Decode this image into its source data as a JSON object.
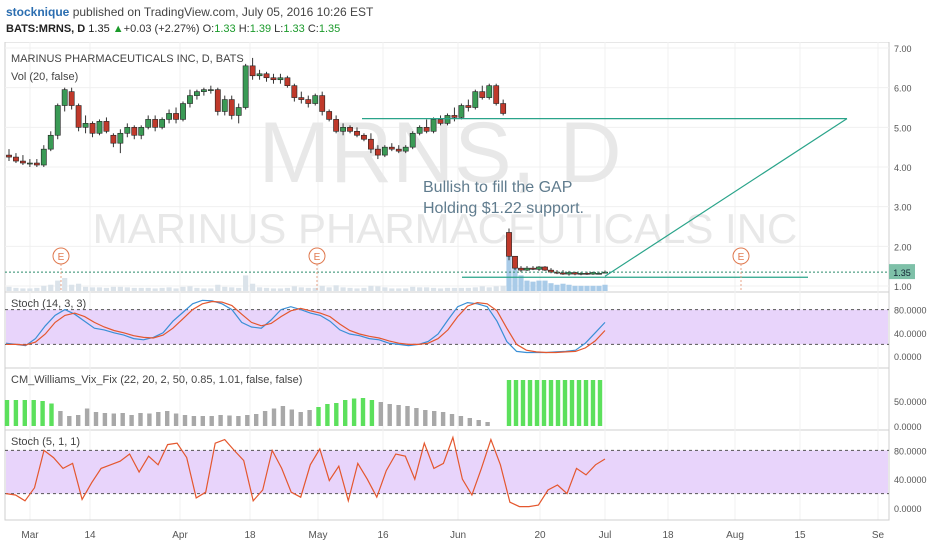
{
  "header": {
    "user": "stocknique",
    "published_text": "published on TradingView.com, July 05, 2016 10:26 EST",
    "symbol": "BATS:MRNS, D",
    "last": "1.35",
    "change": "+0.03 (+2.27%)",
    "o_label": "O:",
    "o_value": "1.33",
    "h_label": "H:",
    "h_value": "1.39",
    "l_label": "L:",
    "l_value": "1.33",
    "c_label": "C:",
    "c_value": "1.35"
  },
  "colors": {
    "up": "#3a9a55",
    "down": "#c0392b",
    "stoch_k": "#3a8fd6",
    "stoch_d": "#e4572e",
    "band": "#e8d4fb",
    "vix_green": "#5ce05c",
    "vix_gray": "#a8a8a8",
    "trend": "#2aa48a",
    "price_tag": "#7ec0a8"
  },
  "annotations": {
    "watermark_ticker": "MRNS, D",
    "watermark_name": "MARINUS PHARMACEUTICALS INC",
    "note_line1": "Bullish to fill the GAP",
    "note_line2": "Holding $1.22 support.",
    "earnings_marker": "E",
    "last_price_tag": "1.35"
  },
  "chart_data": [
    {
      "type": "candlestick",
      "title": "MARINUS PHARMACEUTICALS INC, D, BATS",
      "volume_label": "Vol (20, false)",
      "y_ticks": [
        "7.00",
        "6.00",
        "5.00",
        "4.00",
        "3.00",
        "2.00",
        "1.00"
      ],
      "ylim": [
        1.0,
        7.0
      ],
      "candles": [
        {
          "o": 4.3,
          "h": 4.45,
          "l": 4.15,
          "c": 4.25
        },
        {
          "o": 4.25,
          "h": 4.35,
          "l": 4.1,
          "c": 4.15
        },
        {
          "o": 4.15,
          "h": 4.3,
          "l": 4.05,
          "c": 4.1
        },
        {
          "o": 4.1,
          "h": 4.2,
          "l": 4.0,
          "c": 4.1
        },
        {
          "o": 4.1,
          "h": 4.2,
          "l": 4.0,
          "c": 4.05
        },
        {
          "o": 4.05,
          "h": 4.55,
          "l": 4.0,
          "c": 4.45
        },
        {
          "o": 4.45,
          "h": 4.9,
          "l": 4.4,
          "c": 4.8
        },
        {
          "o": 4.8,
          "h": 5.6,
          "l": 4.7,
          "c": 5.55
        },
        {
          "o": 5.55,
          "h": 6.0,
          "l": 5.4,
          "c": 5.95
        },
        {
          "o": 5.9,
          "h": 6.0,
          "l": 5.45,
          "c": 5.55
        },
        {
          "o": 5.55,
          "h": 5.6,
          "l": 4.9,
          "c": 5.0
        },
        {
          "o": 5.0,
          "h": 5.3,
          "l": 4.85,
          "c": 5.1
        },
        {
          "o": 5.1,
          "h": 5.15,
          "l": 4.75,
          "c": 4.85
        },
        {
          "o": 4.85,
          "h": 5.2,
          "l": 4.8,
          "c": 5.15
        },
        {
          "o": 5.15,
          "h": 5.25,
          "l": 4.85,
          "c": 4.9
        },
        {
          "o": 4.8,
          "h": 4.85,
          "l": 4.5,
          "c": 4.6
        },
        {
          "o": 4.6,
          "h": 4.95,
          "l": 4.35,
          "c": 4.85
        },
        {
          "o": 4.85,
          "h": 5.1,
          "l": 4.75,
          "c": 5.0
        },
        {
          "o": 5.0,
          "h": 5.05,
          "l": 4.7,
          "c": 4.8
        },
        {
          "o": 4.8,
          "h": 5.05,
          "l": 4.7,
          "c": 5.0
        },
        {
          "o": 5.0,
          "h": 5.3,
          "l": 4.95,
          "c": 5.2
        },
        {
          "o": 5.2,
          "h": 5.3,
          "l": 4.9,
          "c": 5.0
        },
        {
          "o": 5.0,
          "h": 5.25,
          "l": 4.95,
          "c": 5.2
        },
        {
          "o": 5.2,
          "h": 5.45,
          "l": 5.1,
          "c": 5.35
        },
        {
          "o": 5.35,
          "h": 5.5,
          "l": 5.1,
          "c": 5.2
        },
        {
          "o": 5.2,
          "h": 5.65,
          "l": 5.15,
          "c": 5.6
        },
        {
          "o": 5.6,
          "h": 5.95,
          "l": 5.5,
          "c": 5.8
        },
        {
          "o": 5.8,
          "h": 5.95,
          "l": 5.7,
          "c": 5.9
        },
        {
          "o": 5.9,
          "h": 6.0,
          "l": 5.8,
          "c": 5.95
        },
        {
          "o": 5.95,
          "h": 6.05,
          "l": 5.85,
          "c": 5.95
        },
        {
          "o": 5.95,
          "h": 6.0,
          "l": 5.3,
          "c": 5.4
        },
        {
          "o": 5.4,
          "h": 5.8,
          "l": 5.3,
          "c": 5.7
        },
        {
          "o": 5.7,
          "h": 5.8,
          "l": 5.2,
          "c": 5.3
        },
        {
          "o": 5.3,
          "h": 5.6,
          "l": 5.1,
          "c": 5.5
        },
        {
          "o": 5.5,
          "h": 6.6,
          "l": 5.45,
          "c": 6.55
        },
        {
          "o": 6.55,
          "h": 6.75,
          "l": 6.2,
          "c": 6.3
        },
        {
          "o": 6.3,
          "h": 6.45,
          "l": 6.2,
          "c": 6.35
        },
        {
          "o": 6.35,
          "h": 6.4,
          "l": 6.15,
          "c": 6.25
        },
        {
          "o": 6.25,
          "h": 6.35,
          "l": 6.1,
          "c": 6.2
        },
        {
          "o": 6.2,
          "h": 6.35,
          "l": 6.1,
          "c": 6.25
        },
        {
          "o": 6.25,
          "h": 6.3,
          "l": 6.0,
          "c": 6.05
        },
        {
          "o": 6.05,
          "h": 6.1,
          "l": 5.65,
          "c": 5.75
        },
        {
          "o": 5.75,
          "h": 5.9,
          "l": 5.6,
          "c": 5.7
        },
        {
          "o": 5.7,
          "h": 5.8,
          "l": 5.5,
          "c": 5.6
        },
        {
          "o": 5.6,
          "h": 5.85,
          "l": 5.55,
          "c": 5.8
        },
        {
          "o": 5.8,
          "h": 5.9,
          "l": 5.3,
          "c": 5.4
        },
        {
          "o": 5.4,
          "h": 5.45,
          "l": 5.15,
          "c": 5.2
        },
        {
          "o": 5.2,
          "h": 5.3,
          "l": 4.85,
          "c": 4.9
        },
        {
          "o": 4.9,
          "h": 5.1,
          "l": 4.8,
          "c": 5.0
        },
        {
          "o": 5.0,
          "h": 5.05,
          "l": 4.85,
          "c": 4.9
        },
        {
          "o": 4.9,
          "h": 5.0,
          "l": 4.75,
          "c": 4.8
        },
        {
          "o": 4.8,
          "h": 4.85,
          "l": 4.65,
          "c": 4.7
        },
        {
          "o": 4.7,
          "h": 4.85,
          "l": 4.35,
          "c": 4.45
        },
        {
          "o": 4.45,
          "h": 4.55,
          "l": 4.2,
          "c": 4.3
        },
        {
          "o": 4.3,
          "h": 4.55,
          "l": 4.25,
          "c": 4.5
        },
        {
          "o": 4.5,
          "h": 4.6,
          "l": 4.4,
          "c": 4.45
        },
        {
          "o": 4.45,
          "h": 4.55,
          "l": 4.35,
          "c": 4.4
        },
        {
          "o": 4.4,
          "h": 4.55,
          "l": 4.35,
          "c": 4.5
        },
        {
          "o": 4.5,
          "h": 4.9,
          "l": 4.45,
          "c": 4.85
        },
        {
          "o": 4.85,
          "h": 5.05,
          "l": 4.8,
          "c": 5.0
        },
        {
          "o": 5.0,
          "h": 5.2,
          "l": 4.85,
          "c": 4.9
        },
        {
          "o": 4.9,
          "h": 5.25,
          "l": 4.85,
          "c": 5.2
        },
        {
          "o": 5.2,
          "h": 5.3,
          "l": 5.05,
          "c": 5.1
        },
        {
          "o": 5.1,
          "h": 5.35,
          "l": 5.05,
          "c": 5.3
        },
        {
          "o": 5.3,
          "h": 5.5,
          "l": 5.15,
          "c": 5.25
        },
        {
          "o": 5.25,
          "h": 5.6,
          "l": 5.2,
          "c": 5.55
        },
        {
          "o": 5.55,
          "h": 5.7,
          "l": 5.4,
          "c": 5.5
        },
        {
          "o": 5.5,
          "h": 5.95,
          "l": 5.45,
          "c": 5.9
        },
        {
          "o": 5.9,
          "h": 6.05,
          "l": 5.7,
          "c": 5.75
        },
        {
          "o": 5.75,
          "h": 6.1,
          "l": 5.7,
          "c": 6.05
        },
        {
          "o": 6.05,
          "h": 6.1,
          "l": 5.55,
          "c": 5.6
        },
        {
          "o": 5.6,
          "h": 5.7,
          "l": 5.3,
          "c": 5.35
        },
        {
          "o": 2.35,
          "h": 2.45,
          "l": 1.65,
          "c": 1.75
        },
        {
          "o": 1.75,
          "h": 1.75,
          "l": 1.4,
          "c": 1.45
        },
        {
          "o": 1.45,
          "h": 1.5,
          "l": 1.35,
          "c": 1.4
        },
        {
          "o": 1.4,
          "h": 1.5,
          "l": 1.38,
          "c": 1.45
        },
        {
          "o": 1.45,
          "h": 1.5,
          "l": 1.4,
          "c": 1.42
        },
        {
          "o": 1.42,
          "h": 1.5,
          "l": 1.38,
          "c": 1.48
        },
        {
          "o": 1.48,
          "h": 1.5,
          "l": 1.38,
          "c": 1.4
        },
        {
          "o": 1.4,
          "h": 1.45,
          "l": 1.32,
          "c": 1.35
        },
        {
          "o": 1.35,
          "h": 1.4,
          "l": 1.3,
          "c": 1.33
        },
        {
          "o": 1.33,
          "h": 1.4,
          "l": 1.28,
          "c": 1.3
        },
        {
          "o": 1.3,
          "h": 1.38,
          "l": 1.26,
          "c": 1.34
        },
        {
          "o": 1.34,
          "h": 1.36,
          "l": 1.27,
          "c": 1.3
        },
        {
          "o": 1.3,
          "h": 1.35,
          "l": 1.27,
          "c": 1.32
        },
        {
          "o": 1.32,
          "h": 1.36,
          "l": 1.28,
          "c": 1.3
        },
        {
          "o": 1.3,
          "h": 1.36,
          "l": 1.28,
          "c": 1.34
        },
        {
          "o": 1.32,
          "h": 1.36,
          "l": 1.29,
          "c": 1.32
        },
        {
          "o": 1.33,
          "h": 1.39,
          "l": 1.33,
          "c": 1.35
        }
      ],
      "volume_relative": [
        0.08,
        0.06,
        0.05,
        0.05,
        0.06,
        0.1,
        0.12,
        0.2,
        0.25,
        0.12,
        0.14,
        0.08,
        0.07,
        0.07,
        0.06,
        0.08,
        0.08,
        0.07,
        0.06,
        0.06,
        0.06,
        0.05,
        0.06,
        0.07,
        0.05,
        0.08,
        0.09,
        0.06,
        0.05,
        0.05,
        0.12,
        0.08,
        0.07,
        0.06,
        0.3,
        0.14,
        0.07,
        0.06,
        0.05,
        0.05,
        0.06,
        0.09,
        0.07,
        0.06,
        0.06,
        0.1,
        0.07,
        0.11,
        0.07,
        0.06,
        0.05,
        0.06,
        0.1,
        0.09,
        0.07,
        0.05,
        0.05,
        0.05,
        0.08,
        0.07,
        0.07,
        0.06,
        0.05,
        0.06,
        0.06,
        0.06,
        0.06,
        0.07,
        0.09,
        0.07,
        0.09,
        0.1,
        1.0,
        0.55,
        0.3,
        0.2,
        0.18,
        0.2,
        0.2,
        0.15,
        0.12,
        0.14,
        0.12,
        0.1,
        0.1,
        0.1,
        0.1,
        0.1,
        0.12
      ],
      "gap_fill_level": 5.22,
      "support_level": 1.22
    },
    {
      "type": "line",
      "title": "Stoch (14, 3, 3)",
      "y_ticks": [
        "80.0000",
        "40.0000",
        "0.0000"
      ],
      "ylim": [
        0,
        100
      ],
      "band": [
        20,
        80
      ],
      "series": [
        {
          "name": "%K",
          "values": [
            22,
            20,
            18,
            30,
            52,
            70,
            80,
            72,
            60,
            48,
            45,
            40,
            36,
            30,
            28,
            32,
            40,
            60,
            75,
            90,
            96,
            95,
            90,
            80,
            58,
            50,
            48,
            62,
            80,
            85,
            80,
            74,
            70,
            60,
            45,
            38,
            35,
            30,
            28,
            22,
            20,
            18,
            20,
            25,
            38,
            62,
            85,
            92,
            90,
            85,
            60,
            25,
            8,
            6,
            6,
            6,
            7,
            8,
            10,
            22,
            40,
            58
          ]
        },
        {
          "name": "%D",
          "values": [
            20,
            20,
            19,
            24,
            38,
            58,
            70,
            74,
            68,
            58,
            50,
            44,
            40,
            35,
            32,
            31,
            36,
            48,
            64,
            80,
            90,
            94,
            93,
            87,
            72,
            58,
            52,
            56,
            68,
            78,
            82,
            78,
            74,
            68,
            55,
            44,
            38,
            34,
            31,
            26,
            22,
            20,
            20,
            22,
            30,
            45,
            68,
            86,
            92,
            90,
            78,
            48,
            20,
            10,
            7,
            6,
            6,
            7,
            8,
            14,
            26,
            44
          ]
        }
      ]
    },
    {
      "type": "bar",
      "title": "CM_Williams_Vix_Fix (22, 20, 2, 50, 0.85, 1.01, false, false)",
      "y_ticks": [
        "50.0000",
        "0.0000"
      ],
      "ylim": [
        0,
        100
      ],
      "values": [
        52,
        52,
        52,
        52,
        50,
        45,
        30,
        20,
        22,
        35,
        28,
        26,
        25,
        26,
        22,
        26,
        25,
        28,
        30,
        25,
        22,
        20,
        20,
        20,
        22,
        21,
        20,
        22,
        24,
        30,
        35,
        40,
        33,
        28,
        32,
        38,
        44,
        46,
        52,
        55,
        56,
        52,
        48,
        44,
        42,
        40,
        36,
        32,
        30,
        28,
        24,
        20,
        16,
        12,
        8,
        92,
        92,
        92,
        92,
        92,
        92,
        92,
        92,
        92,
        92,
        92,
        92,
        92,
        92
      ],
      "highlight_from": 55
    },
    {
      "type": "line",
      "title": "Stoch (5, 1, 1)",
      "y_ticks": [
        "80.0000",
        "40.0000",
        "0.0000"
      ],
      "ylim": [
        0,
        100
      ],
      "band": [
        20,
        80
      ],
      "series": [
        {
          "name": "%K",
          "values": [
            20,
            18,
            10,
            28,
            80,
            70,
            55,
            62,
            12,
            35,
            55,
            60,
            65,
            75,
            50,
            72,
            60,
            88,
            90,
            70,
            14,
            22,
            90,
            95,
            80,
            66,
            10,
            25,
            80,
            55,
            22,
            15,
            60,
            82,
            38,
            58,
            10,
            62,
            40,
            15,
            52,
            75,
            72,
            40,
            90,
            55,
            62,
            98,
            40,
            18,
            55,
            95,
            60,
            8,
            2,
            2,
            4,
            25,
            32,
            20,
            55,
            46,
            60,
            68
          ]
        }
      ]
    }
  ],
  "x_axis_labels": [
    "Mar",
    "14",
    "Apr",
    "18",
    "May",
    "16",
    "Jun",
    "20",
    "Jul",
    "18",
    "Aug",
    "15",
    "Se"
  ]
}
